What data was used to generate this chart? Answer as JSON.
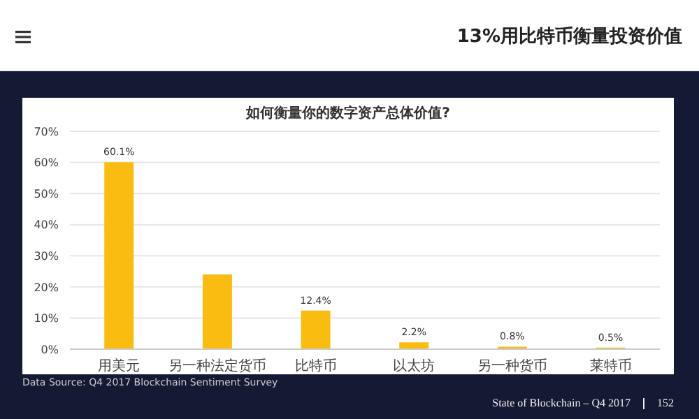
{
  "chart_data": {
    "type": "bar",
    "title": "如何衡量你的数字资产总体价值?",
    "categories": [
      "用美元",
      "另一种法定货币",
      "比特币",
      "以太坊",
      "另一种货币",
      "莱特币"
    ],
    "values": [
      60.1,
      24.0,
      12.4,
      2.2,
      0.8,
      0.5
    ],
    "value_labels": [
      "60.1%",
      null,
      "12.4%",
      "2.2%",
      "0.8%",
      "0.5%"
    ],
    "color": "#fbbc12",
    "ylim": [
      0,
      70
    ],
    "yticks": [
      {
        "value": 0,
        "label": "0%"
      },
      {
        "value": 10,
        "label": "10%"
      },
      {
        "value": 20,
        "label": "20%"
      },
      {
        "value": 30,
        "label": "30%"
      },
      {
        "value": 40,
        "label": "40%"
      },
      {
        "value": 50,
        "label": "50%"
      },
      {
        "value": 60,
        "label": "60%"
      },
      {
        "value": 70,
        "label": "70%"
      }
    ],
    "grid": "y",
    "annotations": [
      "13%用比特币衡量投资价值",
      "Data Source: Q4 2017 Blockchain Sentiment Survey",
      "State of Blockchain – Q4 2017",
      "152"
    ]
  }
}
